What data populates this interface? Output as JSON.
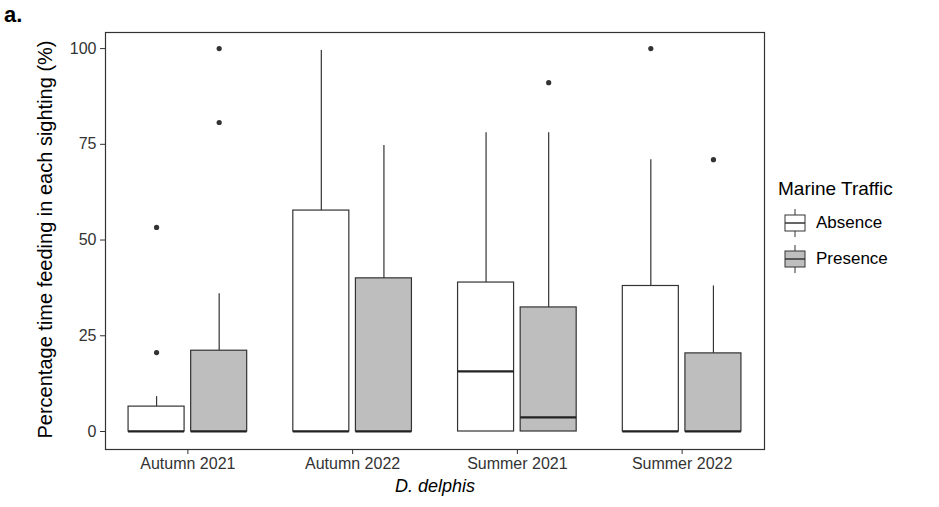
{
  "chart_data": {
    "type": "box",
    "title": "a.",
    "x_label": "D. delphis",
    "y_label": "Percentage time feeding in each sighting (%)",
    "legend_title": "Marine Traffic",
    "legend": "right",
    "grid": false,
    "categories": [
      "Autumn 2021",
      "Autumn 2022",
      "Summer 2021",
      "Summer 2022"
    ],
    "ylim": [
      -4.7,
      104.2
    ],
    "yticks": [
      0,
      25,
      50,
      75,
      100
    ],
    "series": [
      {
        "name": "Absence",
        "color": "#ffffff",
        "min": [
          0,
          0,
          0,
          0
        ],
        "q1": [
          0,
          0,
          0,
          0
        ],
        "median": [
          0,
          0,
          15.7,
          0
        ],
        "q3": [
          6.5,
          57.7,
          38.9,
          38
        ],
        "max": [
          9.1,
          99.5,
          78,
          71
        ],
        "outliers": [
          [
            20.6,
            53.3
          ],
          [],
          [],
          [
            100
          ]
        ]
      },
      {
        "name": "Presence",
        "color": "#bebebe",
        "min": [
          0,
          0,
          0,
          0
        ],
        "q1": [
          0,
          0,
          0,
          0
        ],
        "median": [
          0,
          0,
          3.7,
          0
        ],
        "q3": [
          21.1,
          40,
          32.4,
          20.4
        ],
        "max": [
          36,
          74.7,
          78,
          38
        ],
        "outliers": [
          [
            80.7,
            100
          ],
          [],
          [
            91.1
          ],
          [
            71
          ]
        ]
      }
    ]
  }
}
